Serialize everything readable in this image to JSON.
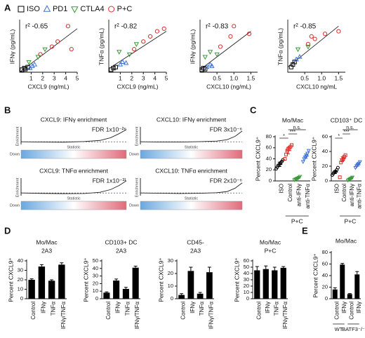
{
  "panels": [
    "A",
    "B",
    "C",
    "D",
    "E"
  ],
  "chart_data": [
    {
      "type": "scatter",
      "ylabel": "IFNγ (pg/mL)",
      "xlabel": "CXCL9 (ng/mL)",
      "annotation": "r² -0.65",
      "xlim": [
        0,
        5
      ],
      "xticks": [
        1,
        2,
        3,
        4,
        5
      ],
      "ylim": [
        0,
        100
      ],
      "series": [
        {
          "name": "ISO",
          "color": "#000000",
          "marker": "square",
          "x": [
            0.2,
            0.4,
            0.5,
            0.7
          ],
          "values": [
            5,
            8,
            6,
            10
          ]
        },
        {
          "name": "PD1",
          "color": "#3b6fd6",
          "marker": "triangle",
          "x": [
            0.9,
            1.1,
            1.3
          ],
          "values": [
            8,
            12,
            15
          ]
        },
        {
          "name": "CTLA4",
          "color": "#3a9a3a",
          "marker": "triangle-down",
          "x": [
            0.8,
            1.6,
            2.2
          ],
          "values": [
            20,
            30,
            45
          ]
        },
        {
          "name": "P+C",
          "color": "#d9302c",
          "marker": "circle",
          "x": [
            1.8,
            2.8,
            3.3,
            4.2,
            4.5
          ],
          "values": [
            35,
            50,
            60,
            90,
            45
          ]
        }
      ],
      "trendline": {
        "x": [
          0,
          5
        ],
        "values": [
          0,
          85
        ]
      }
    },
    {
      "type": "scatter",
      "ylabel": "TNFα (pg/mL)",
      "xlabel": "CXCL9 (ng/mL)",
      "annotation": "r² -0.82",
      "xlim": [
        0,
        5
      ],
      "xticks": [
        1,
        2,
        3,
        4,
        5
      ],
      "ylim": [
        0,
        100
      ],
      "series": [
        {
          "name": "ISO",
          "color": "#000000",
          "marker": "square",
          "x": [
            0.2,
            0.4,
            0.6
          ],
          "values": [
            5,
            8,
            10
          ]
        },
        {
          "name": "PD1",
          "color": "#3b6fd6",
          "marker": "triangle",
          "x": [
            1,
            1.2,
            1.5
          ],
          "values": [
            15,
            20,
            18
          ]
        },
        {
          "name": "CTLA4",
          "color": "#3a9a3a",
          "marker": "triangle-down",
          "x": [
            0.9,
            1.8,
            2.4
          ],
          "values": [
            40,
            35,
            55
          ]
        },
        {
          "name": "P+C",
          "color": "#d9302c",
          "marker": "circle",
          "x": [
            2.2,
            3,
            3.6,
            4.2,
            4.8
          ],
          "values": [
            45,
            60,
            70,
            80,
            85
          ]
        }
      ],
      "trendline": {
        "x": [
          0.2,
          5
        ],
        "values": [
          10,
          80
        ]
      }
    },
    {
      "type": "scatter",
      "ylabel": "IFNγ (pg/mL)",
      "xlabel": "CXCL10 (ng/mL)",
      "annotation": "r² -0.83",
      "xlim": [
        0,
        1.7
      ],
      "xticks": [
        0.5,
        {
          "value": 1,
          "label": "1.0"
        },
        1.5
      ],
      "ylim": [
        0,
        100
      ],
      "series": [
        {
          "name": "ISO",
          "color": "#000000",
          "marker": "square",
          "x": [
            0.05,
            0.1,
            0.15
          ],
          "values": [
            5,
            8,
            6
          ]
        },
        {
          "name": "PD1",
          "color": "#3b6fd6",
          "marker": "triangle",
          "x": [
            0.2,
            0.3,
            0.35
          ],
          "values": [
            10,
            15,
            12
          ]
        },
        {
          "name": "CTLA4",
          "color": "#3a9a3a",
          "marker": "triangle-down",
          "x": [
            0.15,
            0.3,
            0.5
          ],
          "values": [
            30,
            40,
            35
          ]
        },
        {
          "name": "P+C",
          "color": "#d9302c",
          "marker": "circle",
          "x": [
            0.6,
            0.9,
            1,
            1.45
          ],
          "values": [
            50,
            70,
            90,
            75
          ]
        }
      ],
      "trendline": {
        "x": [
          0,
          1.5
        ],
        "values": [
          5,
          80
        ]
      }
    },
    {
      "type": "scatter",
      "ylabel": "TNFα (pg/mL)",
      "xlabel": "CXCL10 ng/mL",
      "annotation": "r² -0.85",
      "xlim": [
        0,
        1.7
      ],
      "xticks": [
        0.5,
        {
          "value": 1,
          "label": "1.0"
        },
        1.5
      ],
      "ylim": [
        0,
        100
      ],
      "series": [
        {
          "name": "ISO",
          "color": "#000000",
          "marker": "square",
          "x": [
            0.1,
            0.15,
            0.2
          ],
          "values": [
            10,
            15,
            20
          ]
        },
        {
          "name": "PD1",
          "color": "#3b6fd6",
          "marker": "triangle",
          "x": [
            0.25,
            0.35
          ],
          "values": [
            25,
            30
          ]
        },
        {
          "name": "CTLA4",
          "color": "#3a9a3a",
          "marker": "triangle-down",
          "x": [
            0.3,
            0.6
          ],
          "values": [
            45,
            50
          ]
        },
        {
          "name": "P+C",
          "color": "#d9302c",
          "marker": "circle",
          "x": [
            0.6,
            0.7,
            0.8,
            1.1,
            1.5
          ],
          "values": [
            55,
            70,
            65,
            75,
            80
          ]
        }
      ],
      "trendline": {
        "x": [
          0,
          1.5
        ],
        "values": [
          10,
          90
        ]
      }
    },
    {
      "type": "line",
      "title": "CXCL9: IFNγ enrichment",
      "annotation": "FDR 1x10⁻²⁶",
      "ylabel": "Enrichment",
      "xlabel": "Statistic",
      "barcode_label": "Down",
      "xlim": [
        0,
        1
      ],
      "ylim": [
        -0.2,
        1
      ],
      "x": [
        0,
        0.2,
        0.4,
        0.6,
        0.75,
        0.85,
        0.93,
        1
      ],
      "values": [
        0,
        -0.02,
        -0.03,
        0.02,
        0.1,
        0.3,
        0.6,
        0.9
      ]
    },
    {
      "type": "line",
      "title": "CXCL10: IFNγ enrichment",
      "annotation": "FDR 3x10⁻⁶",
      "ylabel": "Enrichment",
      "xlabel": "Statistic",
      "barcode_label": "Down",
      "xlim": [
        0,
        1
      ],
      "ylim": [
        -0.2,
        1
      ],
      "x": [
        0,
        0.2,
        0.4,
        0.6,
        0.75,
        0.85,
        0.93,
        1
      ],
      "values": [
        0,
        -0.02,
        -0.02,
        0.01,
        0.05,
        0.15,
        0.4,
        0.8
      ]
    },
    {
      "type": "line",
      "title": "CXCL9: TNFα enrichment",
      "annotation": "FDR 1x10⁻³¹",
      "ylabel": "Enrichment",
      "xlabel": "Statistic",
      "barcode_label": "Down",
      "xlim": [
        0,
        1
      ],
      "ylim": [
        -0.2,
        1
      ],
      "x": [
        0,
        0.2,
        0.4,
        0.6,
        0.75,
        0.85,
        0.93,
        1
      ],
      "values": [
        0,
        -0.03,
        -0.05,
        -0.04,
        0.05,
        0.25,
        0.55,
        0.9
      ]
    },
    {
      "type": "line",
      "title": "CXCL10: TNFα enrichment",
      "annotation": "FDR 2x10⁻⁶",
      "ylabel": "Enrichment",
      "xlabel": "Statistic",
      "barcode_label": "Down",
      "xlim": [
        0,
        1
      ],
      "ylim": [
        -0.2,
        1
      ],
      "x": [
        0,
        0.2,
        0.4,
        0.6,
        0.75,
        0.85,
        0.93,
        1
      ],
      "values": [
        0,
        -0.02,
        -0.04,
        -0.02,
        0.02,
        0.1,
        0.35,
        0.75
      ]
    },
    {
      "type": "dot",
      "title": [
        "Mo/Mac"
      ],
      "ylabel": "Percent CXCL9⁺",
      "group_labels": [
        "P+C"
      ],
      "categories": [
        "ISO",
        "Control",
        "anti-IFNγ",
        "anti-TNFα"
      ],
      "colors": [
        "#000000",
        "#d9302c",
        "#3a9a3a",
        "#3b6fd6"
      ],
      "markers": [
        "circle",
        "square",
        "triangle-down",
        "triangle-down"
      ],
      "ylim": [
        0,
        80
      ],
      "yticks": [
        0,
        20,
        40,
        60,
        80
      ],
      "points": [
        [
          22,
          25,
          28,
          30,
          33,
          35,
          38
        ],
        [
          40,
          48,
          55,
          58,
          60,
          62,
          65
        ],
        [
          2,
          3,
          4,
          5,
          6,
          8
        ],
        [
          35,
          40,
          43,
          45,
          50,
          55
        ]
      ],
      "means": [
        30,
        55,
        5,
        45
      ],
      "errors": [
        4,
        6,
        1,
        4
      ],
      "significance": [
        "*",
        "***",
        "n.s."
      ]
    },
    {
      "type": "dot",
      "title": [
        "CD103⁺ DC"
      ],
      "ylabel": "Percent CXCL9⁺",
      "group_labels": [
        "P+C"
      ],
      "categories": [
        "ISO",
        "Control",
        "anti-IFNγ",
        "anti-TNFα"
      ],
      "colors": [
        "#000000",
        "#d9302c",
        "#3a9a3a",
        "#3b6fd6"
      ],
      "markers": [
        "circle",
        "square",
        "triangle-down",
        "triangle-down"
      ],
      "ylim": [
        0,
        60
      ],
      "yticks": [
        0,
        20,
        40,
        60
      ],
      "points": [
        [
          8,
          10,
          12,
          13,
          15,
          18
        ],
        [
          5,
          25,
          28,
          30,
          33,
          35
        ],
        [
          1,
          2,
          3,
          4,
          5
        ],
        [
          18,
          20,
          22,
          24,
          26
        ]
      ],
      "means": [
        12,
        30,
        3,
        22
      ],
      "errors": [
        2,
        3,
        1,
        2
      ],
      "significance": [
        "*",
        "***",
        "n.s."
      ]
    },
    {
      "type": "bar",
      "title": [
        "Mo/Mac",
        "2A3"
      ],
      "ylabel": "Percent CXCL9⁺",
      "color": "#000000",
      "categories": [
        "Control",
        "IFNγ",
        "TNFα",
        "IFNγ/TNFα"
      ],
      "values": [
        20,
        34,
        19,
        36
      ],
      "errors": [
        1,
        2,
        1,
        2
      ],
      "ylim": [
        0,
        40
      ],
      "yticks": [
        0,
        10,
        20,
        30,
        40
      ]
    },
    {
      "type": "bar",
      "title": [
        "CD103+ DC",
        "2A3"
      ],
      "ylabel": "Percent CXCL9⁺",
      "color": "#000000",
      "categories": [
        "Control",
        "IFNγ",
        "TNFα",
        "IFNγ/TNFα"
      ],
      "values": [
        8,
        24,
        13,
        41
      ],
      "errors": [
        1,
        2,
        2,
        2
      ],
      "ylim": [
        0,
        50
      ],
      "yticks": [
        0,
        10,
        20,
        30,
        40,
        50
      ]
    },
    {
      "type": "bar",
      "title": [
        "CD45-",
        "2A3"
      ],
      "ylabel": "Percent CXCL9⁺",
      "color": "#000000",
      "categories": [
        "Control",
        "IFNγ",
        "TNFα",
        "IFNγ/TNFα"
      ],
      "values": [
        3,
        22,
        4,
        21
      ],
      "errors": [
        1,
        3,
        1,
        4
      ],
      "ylim": [
        0,
        30
      ],
      "yticks": [
        0,
        10,
        20,
        30
      ]
    },
    {
      "type": "bar",
      "title": [
        "Mo/Mac",
        "P+C"
      ],
      "ylabel": "Percent CXCL9⁺",
      "color": "#000000",
      "categories": [
        "Control",
        "IFNγ",
        "TNFα",
        "IFNγ/TNFα"
      ],
      "values": [
        45,
        47,
        45,
        49
      ],
      "errors": [
        6,
        5,
        5,
        2
      ],
      "ylim": [
        0,
        60
      ],
      "yticks": [
        0,
        10,
        20,
        30,
        40,
        50,
        60
      ]
    },
    {
      "type": "bar",
      "title": [
        "Mo/Mac"
      ],
      "ylabel": "Percent CXCL9⁺",
      "color": "#000000",
      "group_labels": [
        "WT",
        "BATF3⁻/⁻"
      ],
      "categories": [
        "Control",
        "IFNγ",
        "Control",
        "IFNγ"
      ],
      "values": [
        16,
        59,
        8,
        42
      ],
      "errors": [
        3,
        2,
        1,
        5
      ],
      "ylim": [
        0,
        80
      ],
      "yticks": [
        0,
        20,
        40,
        60,
        80
      ]
    }
  ]
}
